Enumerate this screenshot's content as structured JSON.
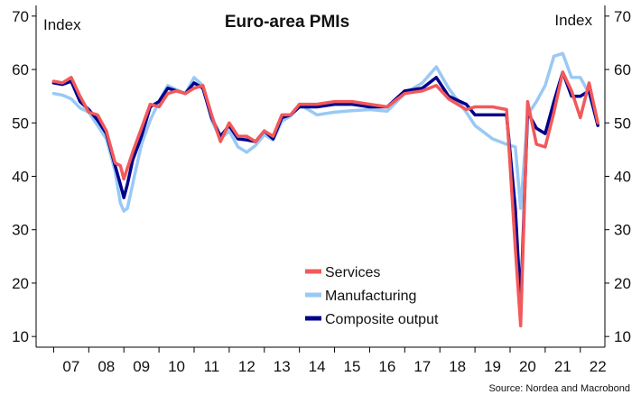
{
  "chart_data": {
    "type": "line",
    "title": "Euro-area PMIs",
    "ylabel_left": "Index",
    "ylabel_right": "Index",
    "source": "Source: Nordea and Macrobond",
    "ylim": [
      8,
      72
    ],
    "yticks": [
      10,
      20,
      30,
      40,
      50,
      60,
      70
    ],
    "xlim": [
      2006.5,
      2022.7
    ],
    "xtick_labels": [
      "07",
      "08",
      "09",
      "10",
      "11",
      "12",
      "13",
      "14",
      "15",
      "16",
      "17",
      "18",
      "19",
      "20",
      "21",
      "22"
    ],
    "legend_position": "bottom-center",
    "grid": false,
    "series": [
      {
        "name": "Manufacturing",
        "color": "#99c9f5",
        "x": [
          2007.0,
          2007.25,
          2007.5,
          2007.75,
          2008.0,
          2008.25,
          2008.5,
          2008.75,
          2008.9,
          2009.0,
          2009.1,
          2009.25,
          2009.5,
          2009.75,
          2010.0,
          2010.25,
          2010.5,
          2010.75,
          2011.0,
          2011.25,
          2011.5,
          2011.75,
          2012.0,
          2012.25,
          2012.5,
          2012.75,
          2013.0,
          2013.25,
          2013.5,
          2013.75,
          2014.0,
          2014.5,
          2015.0,
          2015.5,
          2016.0,
          2016.5,
          2017.0,
          2017.5,
          2017.9,
          2018.25,
          2018.75,
          2019.0,
          2019.5,
          2019.9,
          2020.15,
          2020.3,
          2020.5,
          2020.75,
          2021.0,
          2021.25,
          2021.5,
          2021.75,
          2022.0,
          2022.25,
          2022.5
        ],
        "values": [
          55.5,
          55.2,
          54.5,
          52.8,
          52.0,
          49.5,
          47.0,
          41.0,
          35.0,
          33.5,
          34.0,
          38.5,
          46.0,
          50.5,
          54.0,
          57.0,
          56.2,
          55.5,
          58.5,
          57.0,
          50.5,
          47.0,
          48.5,
          45.5,
          44.5,
          45.8,
          47.8,
          46.8,
          50.3,
          51.3,
          53.5,
          51.5,
          52.0,
          52.3,
          52.5,
          52.2,
          55.5,
          57.5,
          60.5,
          56.5,
          52.0,
          49.5,
          47.0,
          46.0,
          45.5,
          34.0,
          51.5,
          54.0,
          57.0,
          62.5,
          63.0,
          58.5,
          58.5,
          55.5,
          49.8
        ]
      },
      {
        "name": "Composite output",
        "color": "#00008b",
        "x": [
          2007.0,
          2007.25,
          2007.5,
          2007.75,
          2008.0,
          2008.25,
          2008.5,
          2008.75,
          2008.9,
          2009.0,
          2009.1,
          2009.25,
          2009.5,
          2009.75,
          2010.0,
          2010.25,
          2010.5,
          2010.75,
          2011.0,
          2011.25,
          2011.5,
          2011.75,
          2012.0,
          2012.25,
          2012.5,
          2012.75,
          2013.0,
          2013.25,
          2013.5,
          2013.75,
          2014.0,
          2014.5,
          2015.0,
          2015.5,
          2016.0,
          2016.5,
          2017.0,
          2017.5,
          2017.9,
          2018.25,
          2018.75,
          2019.0,
          2019.5,
          2019.9,
          2020.15,
          2020.3,
          2020.5,
          2020.75,
          2021.0,
          2021.25,
          2021.5,
          2021.75,
          2022.0,
          2022.25,
          2022.5
        ],
        "values": [
          57.5,
          57.2,
          57.8,
          54.0,
          52.5,
          50.5,
          48.0,
          42.0,
          38.5,
          36.0,
          38.5,
          43.0,
          47.5,
          53.0,
          54.0,
          56.5,
          56.0,
          55.5,
          57.5,
          56.5,
          51.0,
          47.5,
          49.5,
          47.0,
          46.8,
          46.5,
          48.5,
          47.0,
          51.0,
          51.5,
          53.0,
          53.0,
          53.5,
          53.5,
          53.0,
          53.0,
          56.0,
          56.5,
          58.5,
          55.0,
          53.5,
          51.5,
          51.5,
          51.5,
          34.0,
          16.0,
          52.0,
          49.0,
          48.0,
          54.0,
          59.5,
          55.0,
          55.0,
          56.0,
          49.5
        ]
      },
      {
        "name": "Services",
        "color": "#f2595a",
        "x": [
          2007.0,
          2007.25,
          2007.5,
          2007.75,
          2008.0,
          2008.25,
          2008.5,
          2008.75,
          2008.9,
          2009.0,
          2009.1,
          2009.25,
          2009.5,
          2009.75,
          2010.0,
          2010.25,
          2010.5,
          2010.75,
          2011.0,
          2011.25,
          2011.5,
          2011.75,
          2012.0,
          2012.25,
          2012.5,
          2012.75,
          2013.0,
          2013.25,
          2013.5,
          2013.75,
          2014.0,
          2014.5,
          2015.0,
          2015.5,
          2016.0,
          2016.5,
          2017.0,
          2017.5,
          2017.9,
          2018.25,
          2018.75,
          2019.0,
          2019.5,
          2019.9,
          2020.15,
          2020.3,
          2020.5,
          2020.75,
          2021.0,
          2021.25,
          2021.5,
          2021.75,
          2022.0,
          2022.25,
          2022.5
        ],
        "values": [
          57.8,
          57.5,
          58.5,
          55.0,
          52.0,
          51.5,
          48.5,
          42.5,
          42.0,
          39.5,
          41.5,
          44.5,
          49.0,
          53.5,
          53.0,
          55.5,
          56.0,
          55.5,
          56.5,
          57.0,
          51.5,
          46.5,
          50.0,
          47.5,
          47.5,
          46.5,
          48.5,
          47.5,
          51.5,
          51.5,
          53.5,
          53.5,
          54.0,
          54.0,
          53.5,
          53.0,
          55.5,
          56.0,
          57.0,
          54.5,
          52.5,
          53.0,
          53.0,
          52.5,
          26.5,
          12.0,
          54.0,
          46.0,
          45.5,
          52.0,
          59.5,
          56.0,
          51.0,
          57.5,
          50.0
        ]
      }
    ]
  }
}
